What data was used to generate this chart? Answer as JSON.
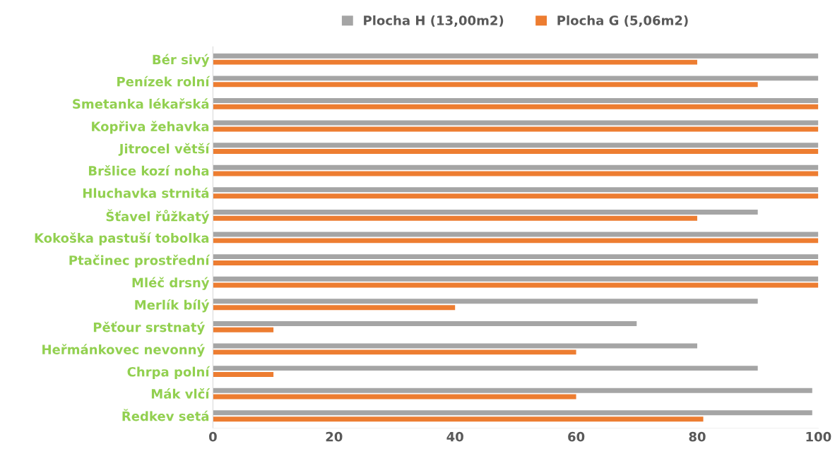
{
  "chart_data": {
    "type": "bar",
    "orientation": "horizontal",
    "categories": [
      "Bér sivý",
      "Penízek rolní",
      "Smetanka lékařská",
      "Kopřiva žehavka",
      "Jitrocel větší",
      "Bršlice kozí noha",
      "Hluchavka strnitá",
      "Šťavel řůžkatý",
      "Kokoška pastuší tobolka",
      "Ptačinec prostřední",
      "Mléč drsný",
      "Merlík bílý",
      "Pěťour srstnatý ",
      "Heřmánkovec nevonný ",
      "Chrpa polní",
      "Mák vlčí",
      "Ředkev setá"
    ],
    "series": [
      {
        "name": "Plocha H (13,00m2)",
        "color": "#a5a5a5",
        "values": [
          100,
          100,
          100,
          100,
          100,
          100,
          100,
          90,
          100,
          100,
          100,
          90,
          70,
          80,
          90,
          99,
          99
        ]
      },
      {
        "name": "Plocha G (5,06m2)",
        "color": "#ed7d31",
        "values": [
          80,
          90,
          100,
          100,
          100,
          100,
          100,
          80,
          100,
          100,
          100,
          40,
          10,
          60,
          10,
          60,
          81
        ]
      }
    ],
    "xlim": [
      0,
      100
    ],
    "xticks": [
      0,
      20,
      40,
      60,
      80,
      100
    ],
    "grid": false,
    "legend": "top"
  }
}
